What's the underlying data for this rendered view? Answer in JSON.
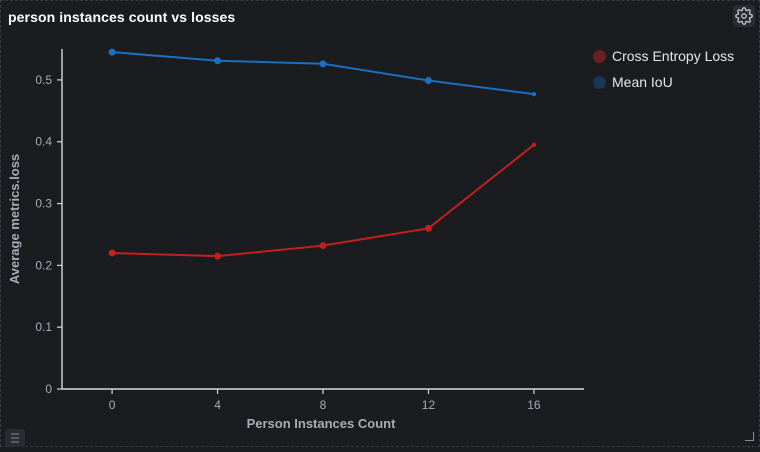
{
  "panel": {
    "title": "person instances count vs losses"
  },
  "icons": {
    "settings": "gear-icon",
    "list": "list-icon",
    "resize": "resize-handle-icon"
  },
  "legend": [
    {
      "label": "Cross Entropy Loss",
      "color": "#6b1f1f"
    },
    {
      "label": "Mean IoU",
      "color": "#17365a"
    }
  ],
  "chart_data": {
    "type": "line",
    "title": "",
    "xlabel": "Person Instances Count",
    "ylabel": "Average metrics.loss",
    "x": [
      0,
      4,
      8,
      12,
      16
    ],
    "xticks": [
      "0",
      "4",
      "8",
      "12",
      "16"
    ],
    "yticks": [
      "0",
      "0.1",
      "0.2",
      "0.3",
      "0.4",
      "0.5"
    ],
    "xlim": [
      -1.9,
      17.9
    ],
    "ylim": [
      0,
      0.55
    ],
    "grid": false,
    "legend_position": "top-right",
    "series": [
      {
        "name": "Cross Entropy Loss",
        "color": "#c0211d",
        "values": [
          0.22,
          0.215,
          0.232,
          0.26,
          0.395
        ]
      },
      {
        "name": "Mean IoU",
        "color": "#1a6fbf",
        "values": [
          0.545,
          0.531,
          0.526,
          0.499,
          0.477
        ]
      }
    ]
  }
}
